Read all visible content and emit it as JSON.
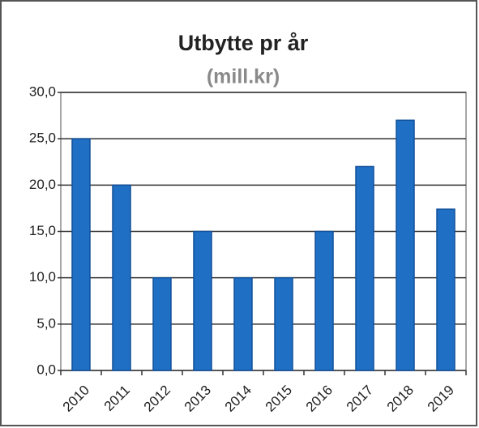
{
  "chart_data": {
    "type": "bar",
    "title": "Utbytte pr år",
    "subtitle": "(mill.kr)",
    "categories": [
      "2010",
      "2011",
      "2012",
      "2013",
      "2014",
      "2015",
      "2016",
      "2017",
      "2018",
      "2019"
    ],
    "values": [
      25,
      20,
      10,
      15,
      10,
      10,
      15,
      22,
      27,
      17.4
    ],
    "color": "#1f6fc5",
    "ylim": [
      0,
      30
    ],
    "yticks": [
      {
        "value": 0,
        "label": "0,0"
      },
      {
        "value": 5,
        "label": "5,0"
      },
      {
        "value": 10,
        "label": "10,0"
      },
      {
        "value": 15,
        "label": "15,0"
      },
      {
        "value": 20,
        "label": "20,0"
      },
      {
        "value": 25,
        "label": "25,0"
      },
      {
        "value": 30,
        "label": "30,0"
      }
    ],
    "grid": true
  }
}
